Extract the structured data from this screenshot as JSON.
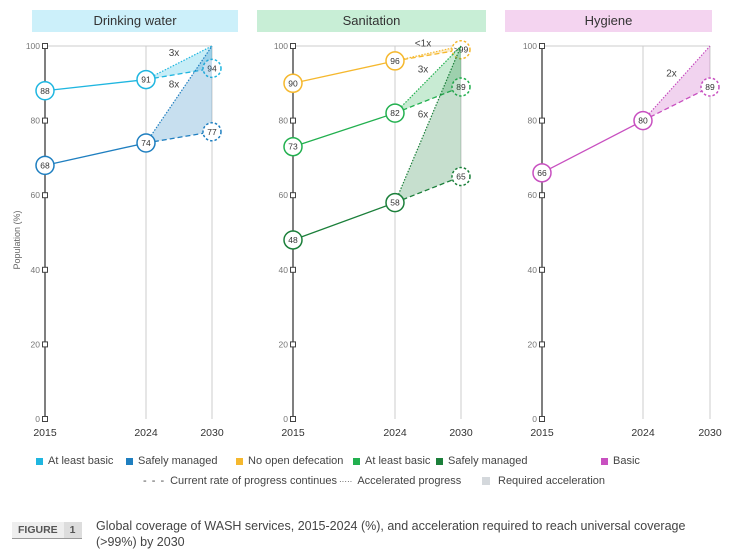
{
  "chart_data": {
    "type": "line",
    "ylabel": "Population (%)",
    "ylim": [
      0,
      100
    ],
    "yticks": [
      "0",
      "20",
      "40",
      "60",
      "80",
      "100"
    ],
    "x": [
      "2015",
      "2024",
      "2030"
    ],
    "panels": [
      {
        "title": "Drinking water",
        "header_color": "#ccf0fa",
        "series": [
          {
            "name": "At least basic",
            "color": "#1fb6e0",
            "values": [
              88,
              91
            ],
            "projected": 94,
            "projected_label": "94",
            "labels": [
              "88",
              "91"
            ],
            "multiplier": "3x"
          },
          {
            "name": "Safely managed",
            "color": "#1f7fc0",
            "values": [
              68,
              74
            ],
            "projected": 77,
            "projected_label": "77",
            "labels": [
              "68",
              "74"
            ],
            "multiplier": "8x"
          }
        ]
      },
      {
        "title": "Sanitation",
        "header_color": "#c8eed6",
        "series": [
          {
            "name": "No open defecation",
            "color": "#f5b82e",
            "values": [
              90,
              96
            ],
            "projected": 99,
            "projected_label": ">99",
            "labels": [
              "90",
              "96"
            ],
            "multiplier": "<1x"
          },
          {
            "name": "At least basic",
            "color": "#22b04f",
            "values": [
              73,
              82
            ],
            "projected": 89,
            "projected_label": "89",
            "labels": [
              "73",
              "82"
            ],
            "multiplier": "3x"
          },
          {
            "name": "Safely managed",
            "color": "#1b7f3a",
            "values": [
              48,
              58
            ],
            "projected": 65,
            "projected_label": "65",
            "labels": [
              "48",
              "58"
            ],
            "multiplier": "6x"
          }
        ]
      },
      {
        "title": "Hygiene",
        "header_color": "#f4d4f0",
        "series": [
          {
            "name": "Basic",
            "color": "#c850c0",
            "values": [
              66,
              80
            ],
            "projected": 89,
            "projected_label": "89",
            "labels": [
              "66",
              "80"
            ],
            "multiplier": "2x"
          }
        ]
      }
    ],
    "legend": {
      "series": [
        {
          "label": "At least basic",
          "color": "#1fb6e0"
        },
        {
          "label": "Safely managed",
          "color": "#1f7fc0"
        },
        {
          "label": "No open defecation",
          "color": "#f5b82e"
        },
        {
          "label": "At least basic",
          "color": "#22b04f"
        },
        {
          "label": "Safely managed",
          "color": "#1b7f3a"
        },
        {
          "label": "Basic",
          "color": "#c850c0"
        }
      ],
      "current": "Current rate of progress continues",
      "accelerated": "Accelerated progress",
      "required": "Required acceleration"
    }
  },
  "figure": {
    "label": "FIGURE",
    "number": "1",
    "caption": "Global coverage of WASH services, 2015-2024 (%), and acceleration required to reach universal coverage (>99%) by 2030"
  }
}
